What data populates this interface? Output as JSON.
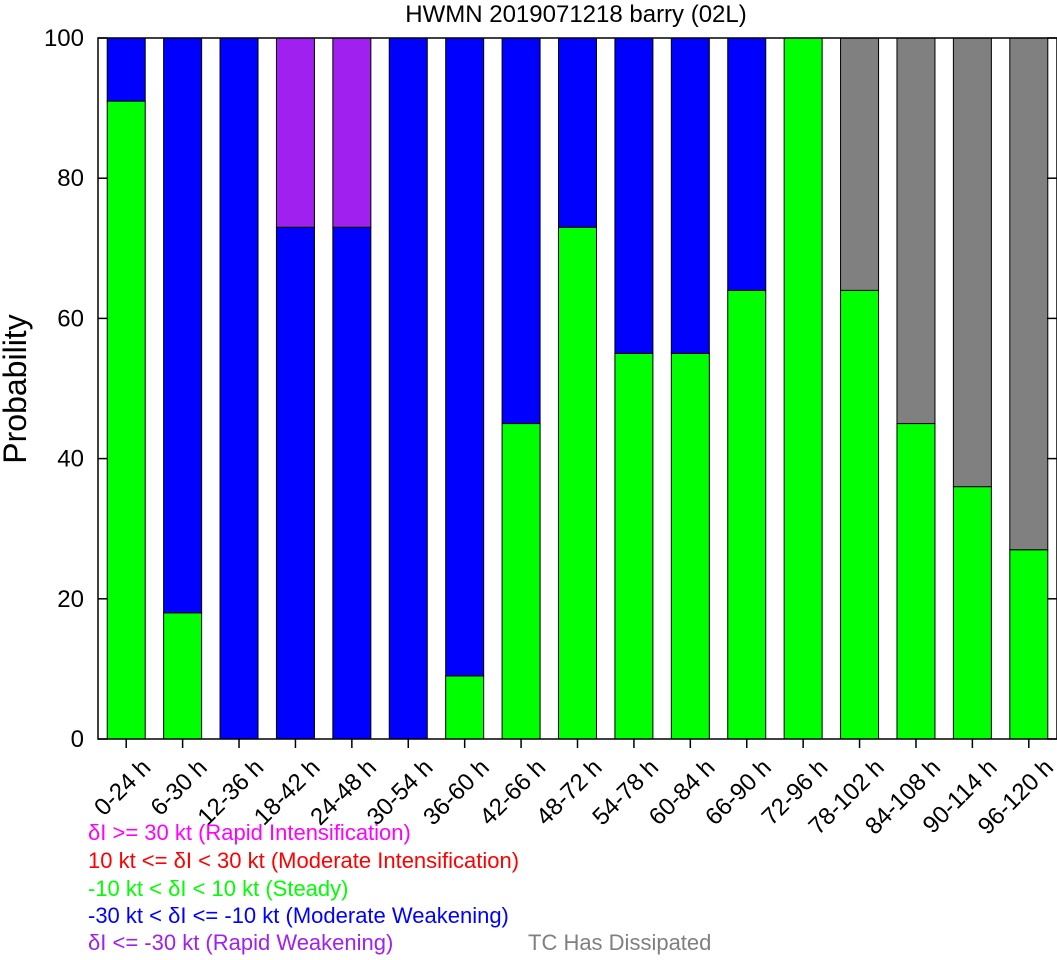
{
  "chart_data": {
    "type": "bar",
    "stacked": true,
    "title": "HWMN 2019071218 barry (02L)",
    "xlabel": "",
    "ylabel": "Probability",
    "ylim": [
      0,
      100
    ],
    "yticks": [
      0,
      20,
      40,
      60,
      80,
      100
    ],
    "grid": false,
    "categories": [
      "0-24 h",
      "6-30 h",
      "12-36 h",
      "18-42 h",
      "24-48 h",
      "30-54 h",
      "36-60 h",
      "42-66 h",
      "48-72 h",
      "54-78 h",
      "60-84 h",
      "66-90 h",
      "72-96 h",
      "78-102 h",
      "84-108 h",
      "90-114 h",
      "96-120 h"
    ],
    "series": [
      {
        "name": "-10 kt < δI < 10 kt (Steady)",
        "color": "#00ff00",
        "values": [
          91,
          18,
          0,
          0,
          0,
          0,
          9,
          45,
          73,
          55,
          55,
          64,
          100,
          64,
          45,
          36,
          27
        ]
      },
      {
        "name": "-30 kt < δI <= -10 kt (Moderate Weakening)",
        "color": "#0000ff",
        "values": [
          9,
          82,
          100,
          73,
          73,
          100,
          91,
          55,
          27,
          45,
          45,
          36,
          0,
          0,
          0,
          0,
          0
        ]
      },
      {
        "name": "δI <= -30 kt (Rapid Weakening)",
        "color": "#a020f0",
        "values": [
          0,
          0,
          0,
          27,
          27,
          0,
          0,
          0,
          0,
          0,
          0,
          0,
          0,
          0,
          0,
          0,
          0
        ]
      },
      {
        "name": "TC Has Dissipated",
        "color": "#808080",
        "values": [
          0,
          0,
          0,
          0,
          0,
          0,
          0,
          0,
          0,
          0,
          0,
          0,
          0,
          36,
          55,
          64,
          73
        ]
      }
    ],
    "legend": [
      {
        "text": "δI >= 30 kt (Rapid Intensification)",
        "color": "#ff00ff"
      },
      {
        "text": "10 kt <= δI < 30 kt (Moderate Intensification)",
        "color": "#ff0000"
      },
      {
        "text": "-10 kt < δI < 10 kt (Steady)",
        "color": "#00ff00"
      },
      {
        "text": "-30 kt < δI <= -10 kt (Moderate Weakening)",
        "color": "#0000ff"
      },
      {
        "text": "δI <= -30 kt (Rapid Weakening)",
        "color": "#a020f0"
      },
      {
        "text": "TC Has Dissipated",
        "color": "#808080"
      }
    ]
  }
}
